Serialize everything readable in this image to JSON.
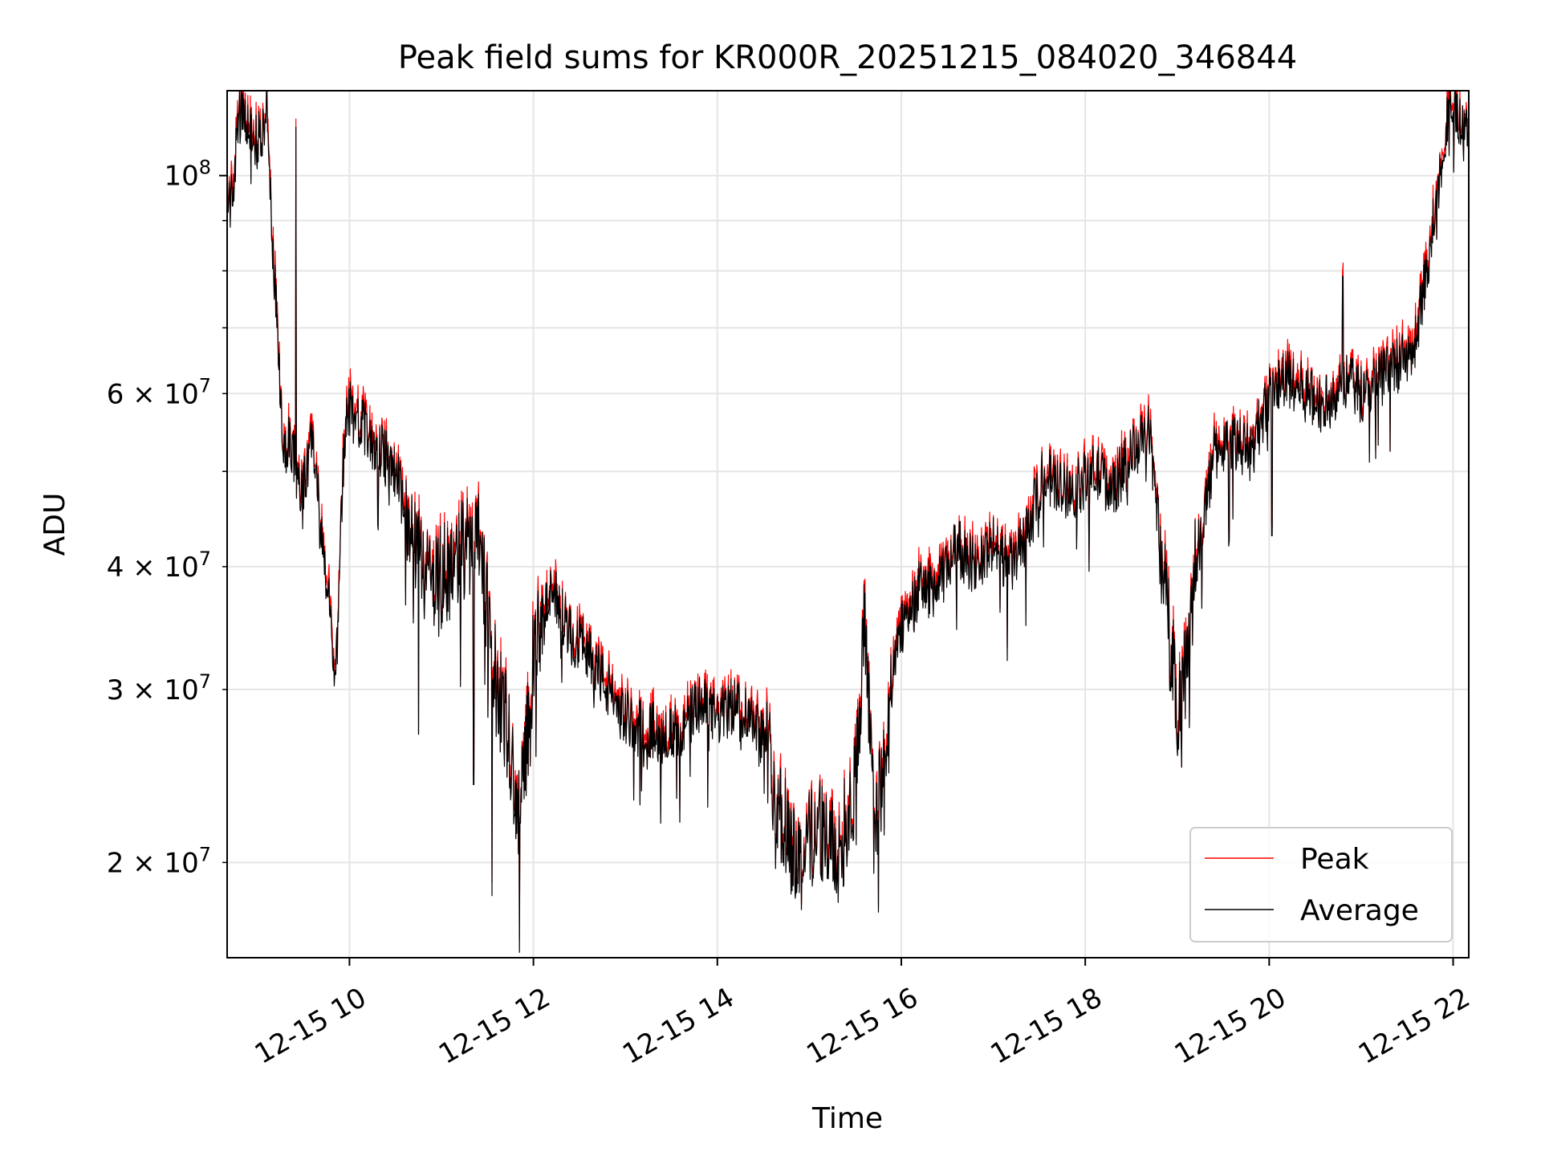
{
  "chart_data": {
    "type": "line",
    "title": "Peak field sums for KR000R_20251215_084020_346844",
    "xlabel": "Time",
    "ylabel": "ADU",
    "yscale": "log",
    "xlim": [
      8.67,
      22.17
    ],
    "ylim": [
      16000000,
      122000000
    ],
    "x_unit": "hour of 2025-12-15",
    "grid": true,
    "legend_position": "lower-right",
    "x_ticks": [
      {
        "value": 10,
        "label": "12-15 10"
      },
      {
        "value": 12,
        "label": "12-15 12"
      },
      {
        "value": 14,
        "label": "12-15 14"
      },
      {
        "value": 16,
        "label": "12-15 16"
      },
      {
        "value": 18,
        "label": "12-15 18"
      },
      {
        "value": 20,
        "label": "12-15 20"
      },
      {
        "value": 22,
        "label": "12-15 22"
      }
    ],
    "y_major_ticks": [
      {
        "value": 100000000,
        "mantissa": "",
        "base": "10",
        "exp": "8"
      }
    ],
    "y_minor_ticks": [
      {
        "value": 20000000,
        "mantissa": "2",
        "base": "10",
        "exp": "7"
      },
      {
        "value": 30000000,
        "mantissa": "3",
        "base": "10",
        "exp": "7"
      },
      {
        "value": 40000000,
        "mantissa": "4",
        "base": "10",
        "exp": "7"
      },
      {
        "value": 50000000,
        "mantissa": "",
        "base": "",
        "exp": ""
      },
      {
        "value": 60000000,
        "mantissa": "6",
        "base": "10",
        "exp": "7"
      },
      {
        "value": 70000000,
        "mantissa": "",
        "base": "",
        "exp": ""
      },
      {
        "value": 80000000,
        "mantissa": "",
        "base": "",
        "exp": ""
      },
      {
        "value": 90000000,
        "mantissa": "",
        "base": "",
        "exp": ""
      }
    ],
    "series": [
      {
        "name": "Peak",
        "color": "#ff0000"
      },
      {
        "name": "Average",
        "color": "#000000"
      }
    ],
    "key_points": [
      [
        8.67,
        95000000
      ],
      [
        8.72,
        94000000
      ],
      [
        8.8,
        115000000
      ],
      [
        8.9,
        112000000
      ],
      [
        9.0,
        108000000
      ],
      [
        9.05,
        110000000
      ],
      [
        9.1,
        120000000
      ],
      [
        9.15,
        90000000
      ],
      [
        9.2,
        75000000
      ],
      [
        9.25,
        58000000
      ],
      [
        9.3,
        52000000
      ],
      [
        9.35,
        55000000
      ],
      [
        9.45,
        48000000
      ],
      [
        9.55,
        50000000
      ],
      [
        9.6,
        55000000
      ],
      [
        9.7,
        42000000
      ],
      [
        9.8,
        35000000
      ],
      [
        9.85,
        30000000
      ],
      [
        9.9,
        42000000
      ],
      [
        9.95,
        55000000
      ],
      [
        10.0,
        58000000
      ],
      [
        10.1,
        56000000
      ],
      [
        10.3,
        53000000
      ],
      [
        10.5,
        50000000
      ],
      [
        10.7,
        42000000
      ],
      [
        10.9,
        38000000
      ],
      [
        11.1,
        40000000
      ],
      [
        11.3,
        42000000
      ],
      [
        11.4,
        45000000
      ],
      [
        11.5,
        36000000
      ],
      [
        11.6,
        30000000
      ],
      [
        11.7,
        28000000
      ],
      [
        11.85,
        22000000
      ],
      [
        12.0,
        32000000
      ],
      [
        12.2,
        38000000
      ],
      [
        12.4,
        34000000
      ],
      [
        12.6,
        33000000
      ],
      [
        12.8,
        30000000
      ],
      [
        13.0,
        28000000
      ],
      [
        13.2,
        27500000
      ],
      [
        13.4,
        27000000
      ],
      [
        13.6,
        27000000
      ],
      [
        13.8,
        29000000
      ],
      [
        14.0,
        28000000
      ],
      [
        14.2,
        29000000
      ],
      [
        14.4,
        28000000
      ],
      [
        14.55,
        26000000
      ],
      [
        14.7,
        22000000
      ],
      [
        14.9,
        20000000
      ],
      [
        15.1,
        22000000
      ],
      [
        15.3,
        20000000
      ],
      [
        15.5,
        24000000
      ],
      [
        15.6,
        35000000
      ],
      [
        15.7,
        22000000
      ],
      [
        15.8,
        24000000
      ],
      [
        15.9,
        30000000
      ],
      [
        16.0,
        35000000
      ],
      [
        16.2,
        38000000
      ],
      [
        16.4,
        38000000
      ],
      [
        16.6,
        42000000
      ],
      [
        16.8,
        40000000
      ],
      [
        17.0,
        42000000
      ],
      [
        17.2,
        40000000
      ],
      [
        17.4,
        44000000
      ],
      [
        17.55,
        50000000
      ],
      [
        17.7,
        48000000
      ],
      [
        17.9,
        48000000
      ],
      [
        18.1,
        50000000
      ],
      [
        18.3,
        48000000
      ],
      [
        18.5,
        52000000
      ],
      [
        18.7,
        55000000
      ],
      [
        18.8,
        44000000
      ],
      [
        18.9,
        35000000
      ],
      [
        19.0,
        29000000
      ],
      [
        19.1,
        32000000
      ],
      [
        19.2,
        40000000
      ],
      [
        19.4,
        52000000
      ],
      [
        19.6,
        54000000
      ],
      [
        19.8,
        52000000
      ],
      [
        20.0,
        60000000
      ],
      [
        20.2,
        62000000
      ],
      [
        20.4,
        60000000
      ],
      [
        20.6,
        58000000
      ],
      [
        20.8,
        62000000
      ],
      [
        21.0,
        60000000
      ],
      [
        21.2,
        62000000
      ],
      [
        21.4,
        64000000
      ],
      [
        21.55,
        65000000
      ],
      [
        21.7,
        78000000
      ],
      [
        21.85,
        100000000
      ],
      [
        21.95,
        118000000
      ],
      [
        22.05,
        117000000
      ],
      [
        22.1,
        110000000
      ],
      [
        22.17,
        112000000
      ]
    ],
    "spikes": [
      {
        "x": 9.42,
        "value": 112000000
      },
      {
        "x": 9.1,
        "value": 122000000
      },
      {
        "x": 11.85,
        "value": 16200000
      },
      {
        "x": 11.55,
        "value": 18500000
      },
      {
        "x": 15.75,
        "value": 17800000
      },
      {
        "x": 19.05,
        "value": 25000000
      },
      {
        "x": 20.8,
        "value": 79000000
      },
      {
        "x": 20.03,
        "value": 43000000
      },
      {
        "x": 10.75,
        "value": 27000000
      },
      {
        "x": 11.35,
        "value": 24000000
      }
    ]
  }
}
